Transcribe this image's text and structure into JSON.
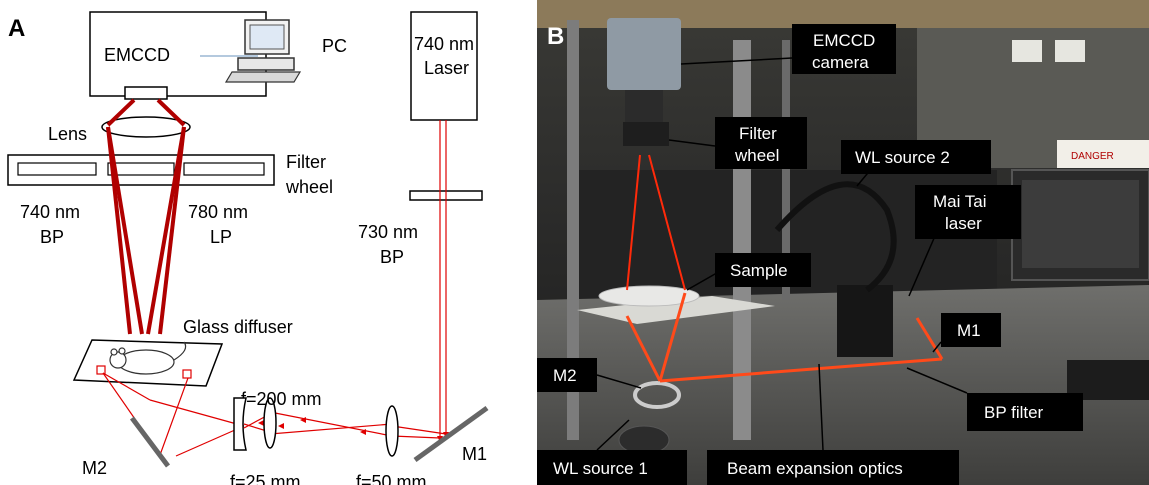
{
  "panel_a": {
    "letter": "A",
    "emccd": "EMCCD",
    "pc": "PC",
    "laser_line1": "740 nm",
    "laser_line2": "Laser",
    "lens": "Lens",
    "filter_wheel_line1": "Filter",
    "filter_wheel_line2": "wheel",
    "bp740_line1": "740 nm",
    "bp740_line2": "BP",
    "lp780_line1": "780 nm",
    "lp780_line2": "LP",
    "bp730_line1": "730 nm",
    "bp730_line2": "BP",
    "glass_diffuser": "Glass diffuser",
    "f200": "f=200 mm",
    "f25": "f=25 mm",
    "f50": "f=50 mm",
    "m1": "M1",
    "m2": "M2",
    "beam_color": "#e00000",
    "beam_dark_color": "#b00000"
  },
  "panel_b": {
    "letter": "B",
    "emccd_line1": "EMCCD",
    "emccd_line2": "camera",
    "filter_line1": "Filter",
    "filter_line2": "wheel",
    "wl2": "WL source 2",
    "maitai_line1": "Mai Tai",
    "maitai_line2": "laser",
    "sample": "Sample",
    "m1": "M1",
    "m2": "M2",
    "bp_filter": "BP filter",
    "wl1": "WL source 1",
    "beam_exp": "Beam expansion optics",
    "danger": "DANGER",
    "laser_beam_color": "#ff4a1a"
  }
}
